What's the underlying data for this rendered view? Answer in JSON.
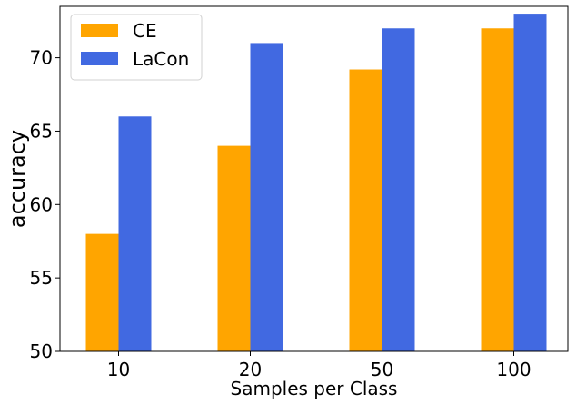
{
  "chart_data": {
    "type": "bar",
    "categories": [
      "10",
      "20",
      "50",
      "100"
    ],
    "series": [
      {
        "name": "CE",
        "values": [
          58,
          64,
          69.2,
          72
        ],
        "color": "#FFA500"
      },
      {
        "name": "LaCon",
        "values": [
          66,
          71,
          72,
          73
        ],
        "color": "#4169E1"
      }
    ],
    "title": "",
    "xlabel": "Samples per Class",
    "ylabel": "accuracy",
    "ylim": [
      50,
      73.5
    ],
    "yticks": [
      50,
      55,
      60,
      65,
      70
    ],
    "grid": false,
    "legend_position": "top-left"
  }
}
